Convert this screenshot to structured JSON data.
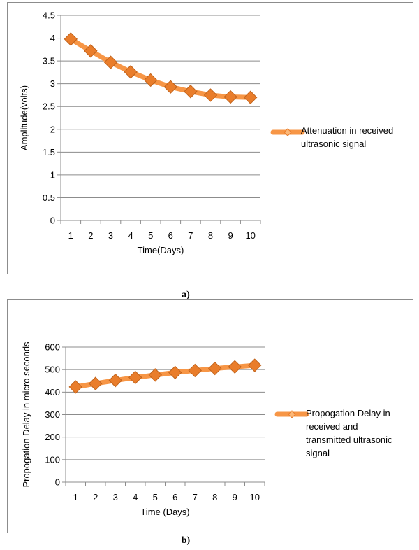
{
  "charts": [
    {
      "caption": "a)",
      "chart_data": {
        "type": "line",
        "x": [
          1,
          2,
          3,
          4,
          5,
          6,
          7,
          8,
          9,
          10
        ],
        "series": [
          {
            "name": "Attenuation in received ultrasonic signal",
            "values": [
              3.98,
              3.72,
              3.47,
              3.26,
              3.08,
              2.93,
              2.83,
              2.75,
              2.71,
              2.7
            ]
          }
        ],
        "xlabel": "Time(Days)",
        "ylabel": "Amplitude(volts)",
        "ylim": [
          0,
          4.5
        ],
        "yticks": [
          "0",
          "0.5",
          "1",
          "1.5",
          "2",
          "2.5",
          "3",
          "3.5",
          "4",
          "4.5"
        ],
        "xticks": [
          "1",
          "2",
          "3",
          "4",
          "5",
          "6",
          "7",
          "8",
          "9",
          "10"
        ],
        "legend_lines": [
          "Attenuation in received",
          "ultrasonic signal"
        ],
        "legend_position": "right",
        "grid": "horizontal",
        "line_color": "#f79646",
        "marker_color": "#e97d2b"
      }
    },
    {
      "caption": "b)",
      "chart_data": {
        "type": "line",
        "x": [
          1,
          2,
          3,
          4,
          5,
          6,
          7,
          8,
          9,
          10
        ],
        "series": [
          {
            "name": "Propogation Delay in received and transmitted ultrasonic signal",
            "values": [
              423,
              438,
              452,
              465,
              476,
              487,
              496,
              505,
              512,
              519
            ]
          }
        ],
        "xlabel": "Time (Days)",
        "ylabel": "Propogation Delay in micro seconds",
        "ylim": [
          0,
          600
        ],
        "yticks": [
          "0",
          "100",
          "200",
          "300",
          "400",
          "500",
          "600"
        ],
        "xticks": [
          "1",
          "2",
          "3",
          "4",
          "5",
          "6",
          "7",
          "8",
          "9",
          "10"
        ],
        "legend_lines": [
          "Propogation Delay in",
          "received and",
          "transmitted ultrasonic",
          "signal"
        ],
        "legend_position": "right",
        "grid": "horizontal",
        "line_color": "#f79646",
        "marker_color": "#e97d2b"
      }
    }
  ]
}
